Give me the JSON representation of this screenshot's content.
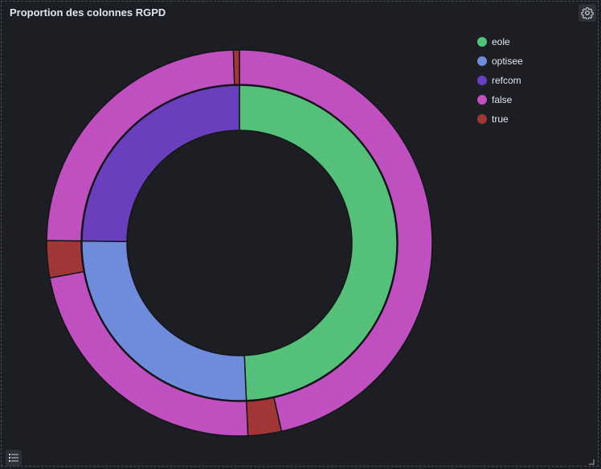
{
  "panel": {
    "title": "Proportion des colonnes RGPD",
    "settings_icon": "gear-icon",
    "legend_toggle_icon": "list-icon"
  },
  "legend": [
    {
      "label": "eole",
      "color": "#54c07a"
    },
    {
      "label": "optisee",
      "color": "#6f8bdb"
    },
    {
      "label": "refcom",
      "color": "#6a3fbd"
    },
    {
      "label": "false",
      "color": "#c050c0"
    },
    {
      "label": "true",
      "color": "#a13636"
    }
  ],
  "chart_data": {
    "type": "pie",
    "variant": "nested-donut",
    "title": "Proportion des colonnes RGPD",
    "legend_position": "top-right",
    "inner_ring": [
      {
        "name": "eole",
        "value": 49.3,
        "color": "#54c07a"
      },
      {
        "name": "optisee",
        "value": 25.9,
        "color": "#6f8bdb"
      },
      {
        "name": "refcom",
        "value": 24.8,
        "color": "#6a3fbd"
      }
    ],
    "outer_ring": [
      {
        "name": "false",
        "value": 46.5,
        "color": "#c050c0"
      },
      {
        "name": "true",
        "value": 2.8,
        "color": "#a13636"
      },
      {
        "name": "false",
        "value": 22.8,
        "color": "#c050c0"
      },
      {
        "name": "true",
        "value": 3.1,
        "color": "#a13636"
      },
      {
        "name": "false",
        "value": 24.3,
        "color": "#c050c0"
      },
      {
        "name": "true",
        "value": 0.5,
        "color": "#a13636"
      }
    ]
  }
}
